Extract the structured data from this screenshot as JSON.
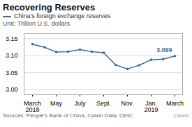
{
  "chart_data": {
    "type": "line",
    "title": "Recovering Reserves",
    "subtitle": "Unit: Trillion U.S. dollars",
    "caption": "Sources: People's Bank of China, Caixin Data, CEIC",
    "credit": "Caixin",
    "categories": [
      "March\n2018",
      null,
      "May",
      null,
      "July",
      null,
      "Sept.",
      null,
      "Nov.",
      null,
      "Jan.\n2019",
      null,
      "March"
    ],
    "series": [
      {
        "name": "China's foreign exchange reserves",
        "color": "#3a6ea5",
        "marker": "circle",
        "values": [
          3.134,
          3.125,
          3.111,
          3.112,
          3.118,
          3.112,
          3.109,
          3.073,
          3.061,
          3.072,
          3.088,
          3.09,
          3.099
        ]
      }
    ],
    "annotations": [
      {
        "text": "3.099",
        "y": 3.099
      }
    ],
    "ylim": [
      2.985,
      3.165
    ],
    "yticks": [
      3.0,
      3.05,
      3.1,
      3.15
    ],
    "grid": true
  }
}
